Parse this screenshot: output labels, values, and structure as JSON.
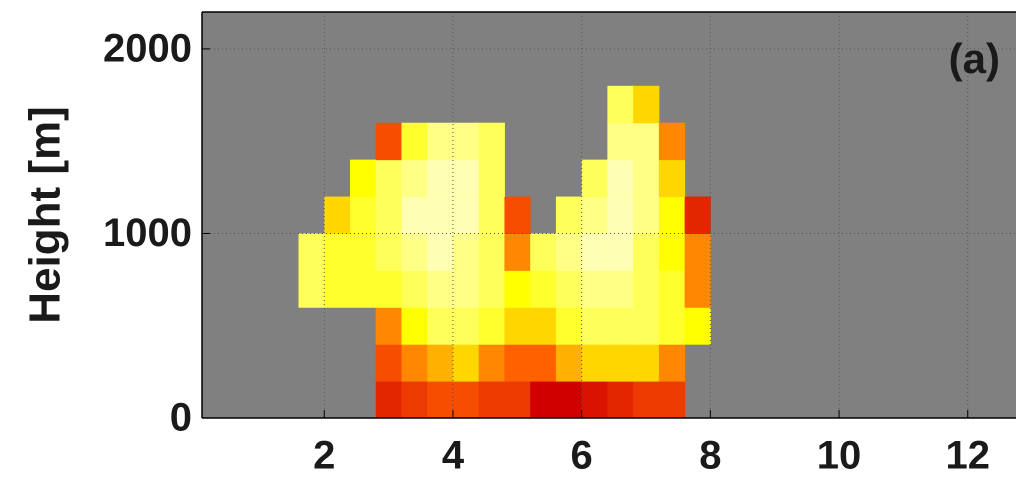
{
  "chart_data": {
    "type": "heatmap",
    "ylabel": "Height [m]",
    "annotation": "(a)",
    "xlim": [
      0.1,
      12.75
    ],
    "ylim": [
      0,
      2200
    ],
    "xticks": [
      2,
      4,
      6,
      8,
      10,
      12
    ],
    "yticks": [
      0,
      1000,
      2000
    ],
    "grid": true,
    "background": "#808080",
    "colormap": "hot",
    "zlim": [
      0,
      1
    ],
    "x_edges": [
      1.6,
      2.0,
      2.4,
      2.8,
      3.2,
      3.6,
      4.0,
      4.4,
      4.8,
      5.2,
      5.6,
      6.0,
      6.4,
      6.8,
      7.2,
      7.6,
      8.0
    ],
    "y_edges": [
      0,
      200,
      400,
      600,
      800,
      1000,
      1200,
      1400,
      1600,
      1800
    ],
    "z": [
      [
        null,
        null,
        null,
        0.4,
        0.45,
        0.5,
        0.5,
        0.45,
        0.45,
        0.3,
        0.3,
        0.35,
        0.4,
        0.45,
        0.45,
        null
      ],
      [
        null,
        null,
        null,
        0.5,
        0.6,
        0.65,
        0.7,
        0.6,
        0.55,
        0.55,
        0.65,
        0.7,
        0.7,
        0.7,
        0.6,
        null
      ],
      [
        null,
        null,
        null,
        0.6,
        0.75,
        0.85,
        0.85,
        0.8,
        0.7,
        0.7,
        0.8,
        0.85,
        0.85,
        0.85,
        0.8,
        0.75
      ],
      [
        0.85,
        0.8,
        0.8,
        0.8,
        0.85,
        0.9,
        0.9,
        0.85,
        0.75,
        0.8,
        0.85,
        0.9,
        0.9,
        0.85,
        0.8,
        0.6
      ],
      [
        0.85,
        0.8,
        0.8,
        0.85,
        0.9,
        0.95,
        0.9,
        0.85,
        0.6,
        0.85,
        0.9,
        0.95,
        0.95,
        0.85,
        0.75,
        0.6
      ],
      [
        null,
        0.7,
        0.8,
        0.85,
        0.95,
        0.95,
        0.95,
        0.85,
        0.5,
        null,
        0.85,
        0.9,
        0.95,
        0.9,
        0.75,
        0.4
      ],
      [
        null,
        null,
        0.75,
        0.85,
        0.9,
        0.95,
        0.95,
        0.85,
        null,
        null,
        null,
        0.85,
        0.95,
        0.9,
        0.7,
        null
      ],
      [
        null,
        null,
        null,
        0.5,
        0.8,
        0.9,
        0.9,
        0.85,
        null,
        null,
        null,
        null,
        0.9,
        0.9,
        0.6,
        null
      ],
      [
        null,
        null,
        null,
        null,
        null,
        null,
        null,
        null,
        null,
        null,
        null,
        null,
        0.85,
        0.7,
        null,
        null
      ]
    ]
  }
}
